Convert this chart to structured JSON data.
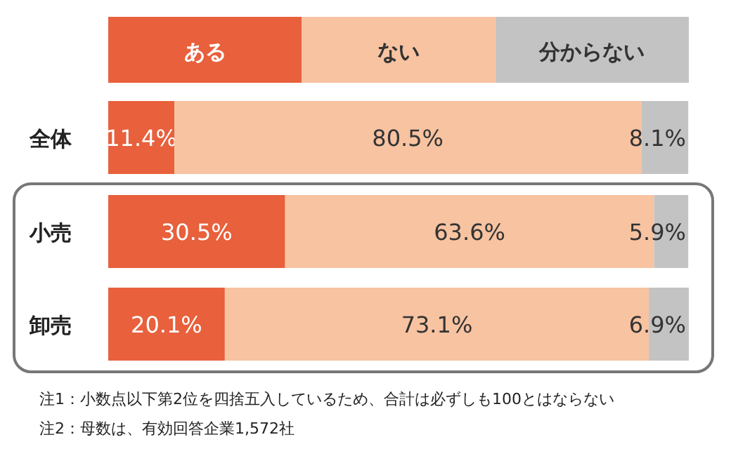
{
  "chart_data": {
    "type": "bar",
    "orientation": "horizontal",
    "stacked": true,
    "legend": "top",
    "categories": [
      "全体",
      "小売",
      "卸売"
    ],
    "series": [
      {
        "name": "ある",
        "color": "#e8603c",
        "values": [
          11.4,
          30.5,
          20.1
        ],
        "value_labels": [
          "11.4%",
          "30.5%",
          "20.1%"
        ]
      },
      {
        "name": "ない",
        "color": "#f7c3a1",
        "values": [
          80.5,
          63.6,
          73.1
        ],
        "value_labels": [
          "80.5%",
          "63.6%",
          "73.1%"
        ]
      },
      {
        "name": "分からない",
        "color": "#c3c3c3",
        "values": [
          8.1,
          5.9,
          6.9
        ],
        "value_labels": [
          "8.1%",
          "5.9%",
          "6.9%"
        ]
      }
    ],
    "annotations": [
      "注1：小数点以下第2位を四捨五入しているため、合計は必ずしも100とはならない",
      "注2：母数は、有効回答企業1,572社"
    ]
  }
}
